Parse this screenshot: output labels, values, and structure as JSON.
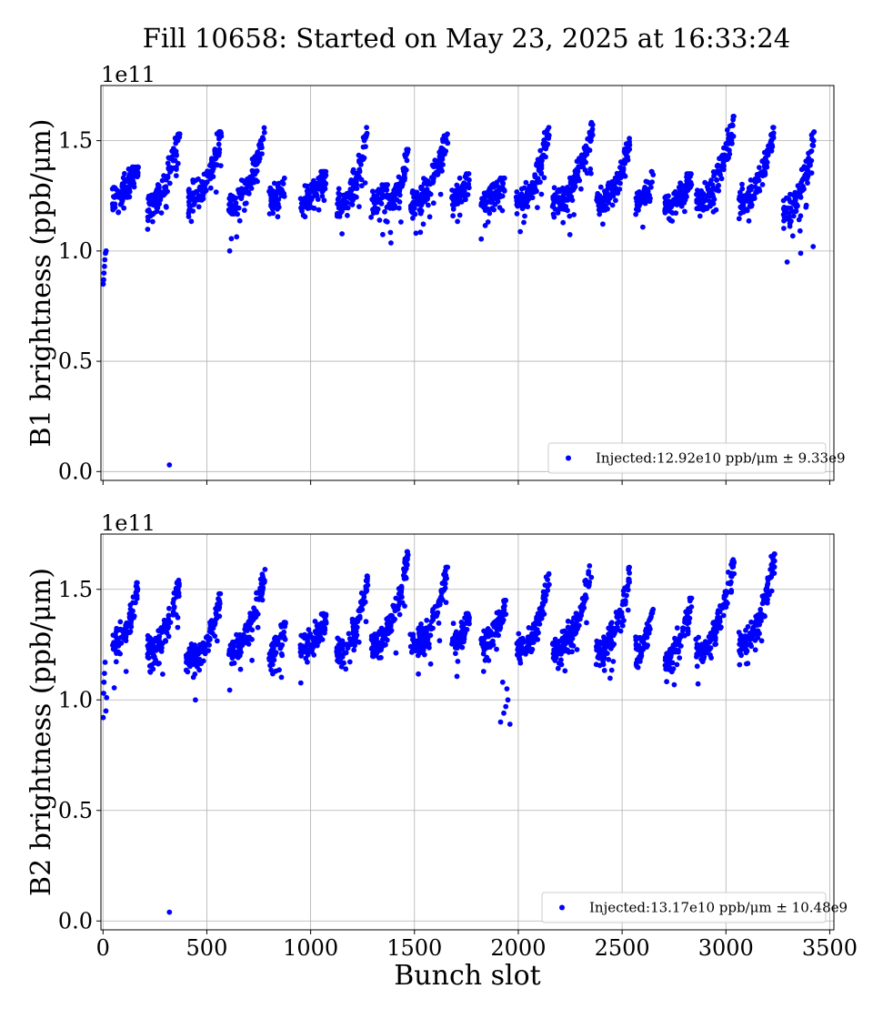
{
  "figure": {
    "title": "Fill 10658: Started on May 23, 2025 at 16:33:24"
  },
  "chart_data": [
    {
      "type": "scatter",
      "ylabel": "B1 brightness (ppb/μm)",
      "xlabel": "",
      "y_offset_label": "1e11",
      "xlim": [
        -10,
        3520
      ],
      "ylim": [
        -0.04,
        1.75
      ],
      "x_ticks": [
        0,
        500,
        1000,
        1500,
        2000,
        2500,
        3000,
        3500
      ],
      "y_ticks": [
        0.0,
        0.5,
        1.0,
        1.5
      ],
      "y_tick_labels": [
        "0.0",
        "0.5",
        "1.0",
        "1.5"
      ],
      "x_tick_labels_shown": false,
      "grid": true,
      "legend_position": "lower-right",
      "series": [
        {
          "name": "Injected:12.92e10 ppb/μm ± 9.33e9",
          "color": "#0000ff",
          "seed": 1,
          "start_points": [
            [
              1,
              0.85
            ],
            [
              3,
              0.87
            ],
            [
              5,
              0.9
            ],
            [
              7,
              0.93
            ],
            [
              9,
              0.96
            ],
            [
              12,
              0.99
            ],
            [
              15,
              1.0
            ]
          ],
          "outliers": [
            [
              320,
              0.03
            ],
            [
              610,
              1.0
            ],
            [
              3295,
              0.95
            ],
            [
              3360,
              0.99
            ],
            [
              3420,
              1.02
            ]
          ],
          "trains": [
            {
              "x0": 45,
              "x1": 170,
              "base": 1.26,
              "peak": 1.37
            },
            {
              "x0": 215,
              "x1": 370,
              "base": 1.22,
              "peak": 1.52
            },
            {
              "x0": 410,
              "x1": 570,
              "base": 1.24,
              "peak": 1.53
            },
            {
              "x0": 605,
              "x1": 780,
              "base": 1.22,
              "peak": 1.55
            },
            {
              "x0": 800,
              "x1": 875,
              "base": 1.22,
              "peak": 1.32
            },
            {
              "x0": 950,
              "x1": 1075,
              "base": 1.22,
              "peak": 1.35
            },
            {
              "x0": 1125,
              "x1": 1275,
              "base": 1.21,
              "peak": 1.55
            },
            {
              "x0": 1290,
              "x1": 1370,
              "base": 1.24,
              "peak": 1.29
            },
            {
              "x0": 1375,
              "x1": 1470,
              "base": 1.22,
              "peak": 1.45
            },
            {
              "x0": 1480,
              "x1": 1660,
              "base": 1.22,
              "peak": 1.52
            },
            {
              "x0": 1680,
              "x1": 1765,
              "base": 1.24,
              "peak": 1.34
            },
            {
              "x0": 1820,
              "x1": 1935,
              "base": 1.22,
              "peak": 1.32
            },
            {
              "x0": 1990,
              "x1": 2150,
              "base": 1.22,
              "peak": 1.55
            },
            {
              "x0": 2165,
              "x1": 2360,
              "base": 1.22,
              "peak": 1.58
            },
            {
              "x0": 2375,
              "x1": 2540,
              "base": 1.22,
              "peak": 1.5
            },
            {
              "x0": 2565,
              "x1": 2650,
              "base": 1.22,
              "peak": 1.35
            },
            {
              "x0": 2705,
              "x1": 2835,
              "base": 1.2,
              "peak": 1.34
            },
            {
              "x0": 2855,
              "x1": 3040,
              "base": 1.22,
              "peak": 1.6
            },
            {
              "x0": 3060,
              "x1": 3230,
              "base": 1.22,
              "peak": 1.55
            },
            {
              "x0": 3275,
              "x1": 3425,
              "base": 1.18,
              "peak": 1.53
            }
          ]
        }
      ]
    },
    {
      "type": "scatter",
      "ylabel": "B2 brightness (ppb/μm)",
      "xlabel": "Bunch slot",
      "y_offset_label": "1e11",
      "xlim": [
        -10,
        3520
      ],
      "ylim": [
        -0.04,
        1.75
      ],
      "x_ticks": [
        0,
        500,
        1000,
        1500,
        2000,
        2500,
        3000,
        3500
      ],
      "x_tick_labels": [
        "0",
        "500",
        "1000",
        "1500",
        "2000",
        "2500",
        "3000",
        "3500"
      ],
      "y_ticks": [
        0.0,
        0.5,
        1.0,
        1.5
      ],
      "y_tick_labels": [
        "0.0",
        "0.5",
        "1.0",
        "1.5"
      ],
      "x_tick_labels_shown": true,
      "grid": true,
      "legend_position": "lower-right",
      "series": [
        {
          "name": "Injected:13.17e10 ppb/μm ± 10.48e9",
          "color": "#0000ff",
          "seed": 2,
          "start_points": [
            [
              1,
              0.92
            ],
            [
              3,
              1.03
            ],
            [
              5,
              1.08
            ],
            [
              7,
              1.12
            ],
            [
              10,
              1.17
            ],
            [
              14,
              0.95
            ],
            [
              17,
              1.01
            ]
          ],
          "outliers": [
            [
              320,
              0.04
            ],
            [
              445,
              1.0
            ],
            [
              1915,
              0.9
            ],
            [
              1930,
              0.94
            ],
            [
              1940,
              0.97
            ],
            [
              1950,
              1.0
            ],
            [
              1960,
              0.89
            ],
            [
              1945,
              1.05
            ],
            [
              1925,
              1.08
            ]
          ],
          "trains": [
            {
              "x0": 45,
              "x1": 170,
              "base": 1.24,
              "peak": 1.52
            },
            {
              "x0": 215,
              "x1": 370,
              "base": 1.22,
              "peak": 1.55
            },
            {
              "x0": 400,
              "x1": 570,
              "base": 1.18,
              "peak": 1.47
            },
            {
              "x0": 605,
              "x1": 780,
              "base": 1.22,
              "peak": 1.58
            },
            {
              "x0": 800,
              "x1": 880,
              "base": 1.22,
              "peak": 1.34
            },
            {
              "x0": 950,
              "x1": 1075,
              "base": 1.24,
              "peak": 1.38
            },
            {
              "x0": 1125,
              "x1": 1275,
              "base": 1.22,
              "peak": 1.55
            },
            {
              "x0": 1290,
              "x1": 1470,
              "base": 1.24,
              "peak": 1.66
            },
            {
              "x0": 1480,
              "x1": 1660,
              "base": 1.24,
              "peak": 1.59
            },
            {
              "x0": 1680,
              "x1": 1765,
              "base": 1.26,
              "peak": 1.38
            },
            {
              "x0": 1820,
              "x1": 1940,
              "base": 1.26,
              "peak": 1.44
            },
            {
              "x0": 1990,
              "x1": 2150,
              "base": 1.22,
              "peak": 1.56
            },
            {
              "x0": 2165,
              "x1": 2355,
              "base": 1.22,
              "peak": 1.61
            },
            {
              "x0": 2375,
              "x1": 2540,
              "base": 1.22,
              "peak": 1.59
            },
            {
              "x0": 2565,
              "x1": 2650,
              "base": 1.22,
              "peak": 1.45
            },
            {
              "x0": 2705,
              "x1": 2835,
              "base": 1.2,
              "peak": 1.45
            },
            {
              "x0": 2855,
              "x1": 3040,
              "base": 1.22,
              "peak": 1.64
            },
            {
              "x0": 3060,
              "x1": 3235,
              "base": 1.24,
              "peak": 1.65
            }
          ]
        }
      ]
    }
  ]
}
